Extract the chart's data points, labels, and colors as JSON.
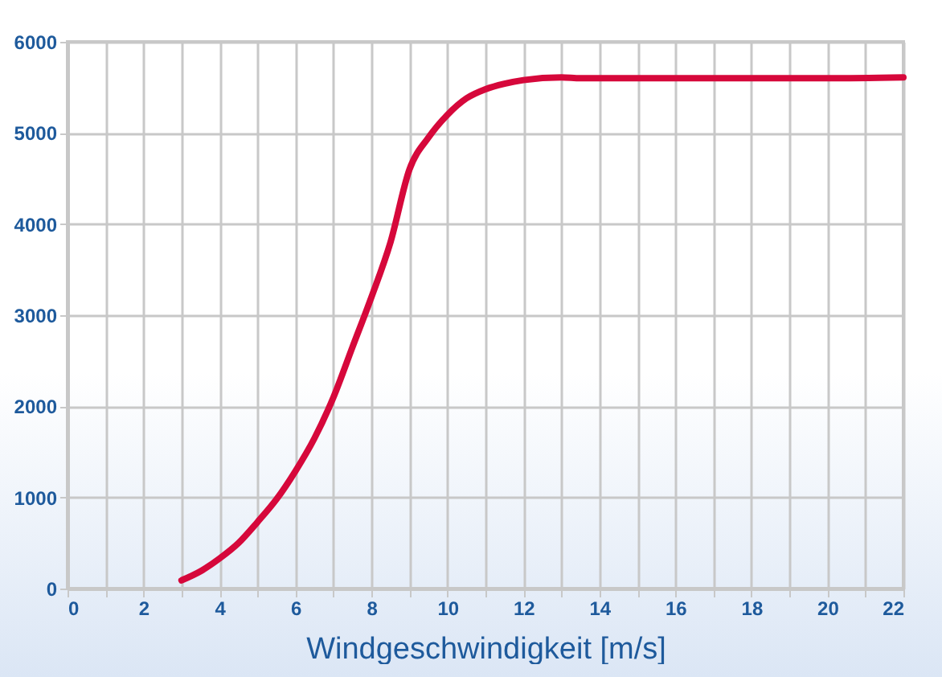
{
  "chart_data": {
    "type": "line",
    "xlabel": "Windgeschwindigkeit [m/s]",
    "x": [
      3,
      3.5,
      4,
      4.5,
      5,
      5.5,
      6,
      6.5,
      7,
      7.5,
      8,
      8.5,
      9,
      9.5,
      10,
      10.5,
      11,
      11.5,
      12,
      13,
      13.5,
      14,
      16,
      18,
      20,
      22
    ],
    "series": [
      {
        "color": "#d6083b",
        "values": [
          90,
          190,
          330,
          500,
          730,
          980,
          1290,
          1650,
          2100,
          2650,
          3200,
          3800,
          4600,
          4950,
          5200,
          5380,
          5480,
          5540,
          5580,
          5610,
          5600,
          5600,
          5600,
          5600,
          5600,
          5610
        ]
      }
    ],
    "xlim": [
      0,
      22
    ],
    "ylim": [
      0,
      6000
    ],
    "xticks": [
      0,
      {
        "value": 1,
        "label": null
      },
      2,
      {
        "value": 3,
        "label": null
      },
      4,
      {
        "value": 5,
        "label": null
      },
      6,
      {
        "value": 7,
        "label": null
      },
      8,
      {
        "value": 9,
        "label": null
      },
      10,
      {
        "value": 11,
        "label": null
      },
      12,
      {
        "value": 13,
        "label": null
      },
      14,
      {
        "value": 15,
        "label": null
      },
      16,
      {
        "value": 17,
        "label": null
      },
      18,
      {
        "value": 19,
        "label": null
      },
      20,
      {
        "value": 21,
        "label": null
      },
      22
    ],
    "yticks": [
      0,
      1000,
      2000,
      3000,
      4000,
      5000,
      6000
    ],
    "grid": true,
    "marker": "none",
    "line_style": "solid"
  }
}
